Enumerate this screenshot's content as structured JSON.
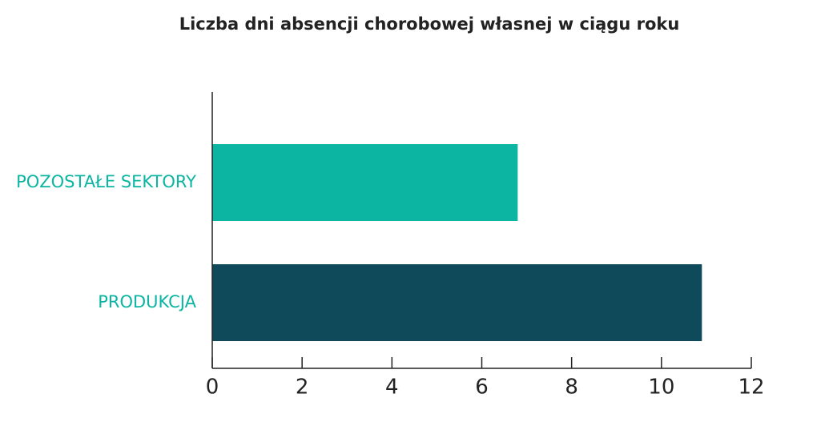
{
  "chart_data": {
    "type": "bar",
    "orientation": "horizontal",
    "title": "Liczba dni absencji chorobowej własnej w ciągu roku",
    "categories": [
      "POZOSTAŁE SEKTORY",
      "PRODUKCJA"
    ],
    "values": [
      6.8,
      10.9
    ],
    "colors": [
      "#0bb5a2",
      "#0f4a5a"
    ],
    "xlim": [
      0,
      12
    ],
    "xticks": [
      0,
      2,
      4,
      6,
      8,
      10,
      12
    ]
  }
}
